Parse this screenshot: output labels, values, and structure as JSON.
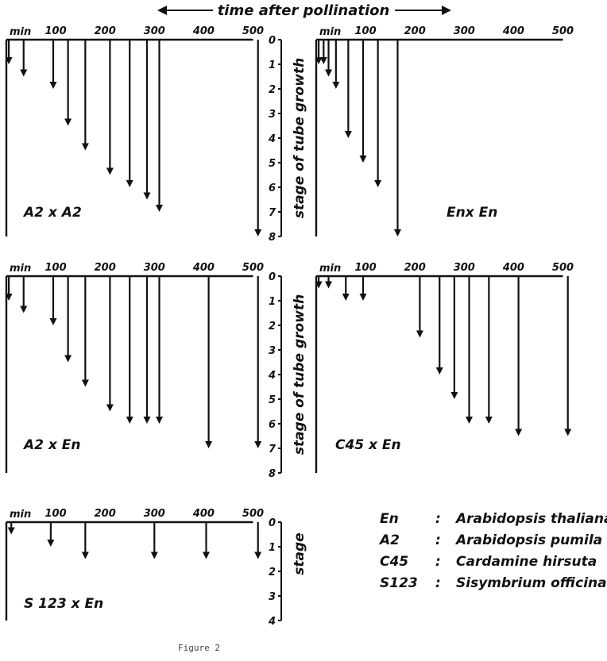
{
  "header": {
    "title": "time after pollination"
  },
  "axis": {
    "x_unit": "min",
    "y_title": "stage of tube growth",
    "y_title_short": "stage"
  },
  "chart_data": [
    {
      "type": "arrow-timeline",
      "cross": "A2 x A2",
      "x_ticks": [
        100,
        200,
        300,
        400,
        500
      ],
      "xlim": [
        0,
        500
      ],
      "y_ticks": [
        0,
        1,
        2,
        3,
        4,
        5,
        6,
        7,
        8
      ],
      "ylim": [
        0,
        8
      ],
      "arrows": [
        {
          "t": 5,
          "stage": 1
        },
        {
          "t": 35,
          "stage": 1.5
        },
        {
          "t": 95,
          "stage": 2
        },
        {
          "t": 125,
          "stage": 3.5
        },
        {
          "t": 160,
          "stage": 4.5
        },
        {
          "t": 210,
          "stage": 5.5
        },
        {
          "t": 250,
          "stage": 6
        },
        {
          "t": 285,
          "stage": 6.5
        },
        {
          "t": 310,
          "stage": 7
        },
        {
          "t": 510,
          "stage": 8
        }
      ]
    },
    {
      "type": "arrow-timeline",
      "cross": "Enx En",
      "x_ticks": [
        100,
        200,
        300,
        400,
        500
      ],
      "xlim": [
        0,
        500
      ],
      "y_ticks": [
        0,
        1,
        2,
        3,
        4,
        5,
        6,
        7,
        8
      ],
      "ylim": [
        0,
        8
      ],
      "arrows": [
        {
          "t": 5,
          "stage": 1
        },
        {
          "t": 15,
          "stage": 1
        },
        {
          "t": 25,
          "stage": 1.5
        },
        {
          "t": 40,
          "stage": 2
        },
        {
          "t": 65,
          "stage": 4
        },
        {
          "t": 95,
          "stage": 5
        },
        {
          "t": 125,
          "stage": 6
        },
        {
          "t": 165,
          "stage": 8
        }
      ]
    },
    {
      "type": "arrow-timeline",
      "cross": "A2 x En",
      "x_ticks": [
        100,
        200,
        300,
        400,
        500
      ],
      "xlim": [
        0,
        500
      ],
      "y_ticks": [
        0,
        1,
        2,
        3,
        4,
        5,
        6,
        7,
        8
      ],
      "ylim": [
        0,
        8
      ],
      "arrows": [
        {
          "t": 5,
          "stage": 1
        },
        {
          "t": 35,
          "stage": 1.5
        },
        {
          "t": 95,
          "stage": 2
        },
        {
          "t": 125,
          "stage": 3.5
        },
        {
          "t": 160,
          "stage": 4.5
        },
        {
          "t": 210,
          "stage": 5.5
        },
        {
          "t": 250,
          "stage": 6
        },
        {
          "t": 285,
          "stage": 6
        },
        {
          "t": 310,
          "stage": 6
        },
        {
          "t": 410,
          "stage": 7
        },
        {
          "t": 510,
          "stage": 7
        }
      ]
    },
    {
      "type": "arrow-timeline",
      "cross": "C45 x En",
      "x_ticks": [
        100,
        200,
        300,
        400,
        500
      ],
      "xlim": [
        0,
        500
      ],
      "y_ticks": [
        0,
        1,
        2,
        3,
        4,
        5,
        6,
        7,
        8
      ],
      "ylim": [
        0,
        8
      ],
      "arrows": [
        {
          "t": 5,
          "stage": 0.5
        },
        {
          "t": 25,
          "stage": 0.5
        },
        {
          "t": 60,
          "stage": 1
        },
        {
          "t": 95,
          "stage": 1
        },
        {
          "t": 210,
          "stage": 2.5
        },
        {
          "t": 250,
          "stage": 4
        },
        {
          "t": 280,
          "stage": 5
        },
        {
          "t": 310,
          "stage": 6
        },
        {
          "t": 350,
          "stage": 6
        },
        {
          "t": 410,
          "stage": 6.5
        },
        {
          "t": 510,
          "stage": 6.5
        }
      ]
    },
    {
      "type": "arrow-timeline",
      "cross": "S 123  x  En",
      "x_ticks": [
        100,
        200,
        300,
        400,
        500
      ],
      "xlim": [
        0,
        500
      ],
      "y_ticks": [
        0,
        1,
        2,
        3,
        4
      ],
      "ylim": [
        0,
        4
      ],
      "arrows": [
        {
          "t": 10,
          "stage": 0.5
        },
        {
          "t": 90,
          "stage": 1
        },
        {
          "t": 160,
          "stage": 1.5
        },
        {
          "t": 300,
          "stage": 1.5
        },
        {
          "t": 405,
          "stage": 1.5
        },
        {
          "t": 510,
          "stage": 1.5
        }
      ]
    }
  ],
  "legend": [
    {
      "code": "En",
      "sep": ":",
      "species": "Arabidopsis thaliana"
    },
    {
      "code": "A2",
      "sep": ":",
      "species": "Arabidopsis pumila"
    },
    {
      "code": "C45",
      "sep": ":",
      "species": "Cardamine hirsuta"
    },
    {
      "code": "S123",
      "sep": ":",
      "species": "Sisymbrium officinale"
    }
  ],
  "caption": "Figure 2"
}
